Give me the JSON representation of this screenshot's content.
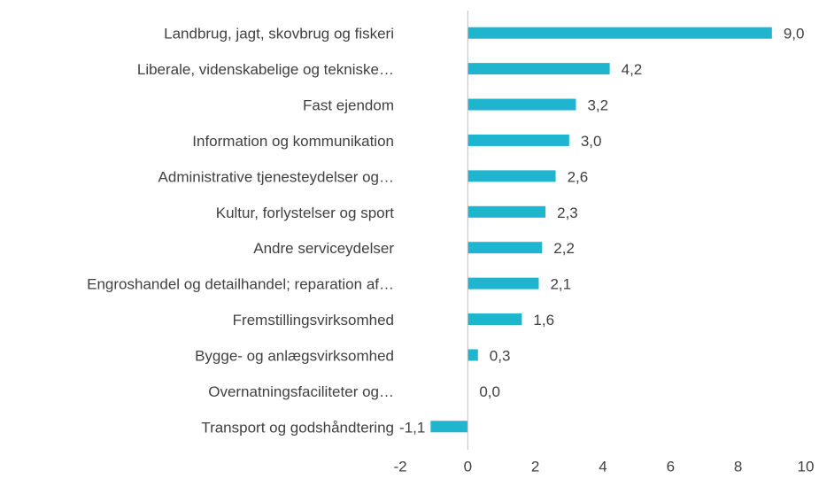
{
  "chart_data": {
    "type": "bar",
    "orientation": "horizontal",
    "categories": [
      "Landbrug, jagt, skovbrug og fiskeri",
      "Liberale, videnskabelige og tekniske…",
      "Fast ejendom",
      "Information og kommunikation",
      "Administrative tjenesteydelser og…",
      "Kultur, forlystelser og sport",
      "Andre serviceydelser",
      "Engroshandel og detailhandel; reparation af…",
      "Fremstillingsvirksomhed",
      "Bygge- og anlægsvirksomhed",
      "Overnatningsfaciliteter og…",
      "Transport og godshåndtering"
    ],
    "values": [
      9.0,
      4.2,
      3.2,
      3.0,
      2.6,
      2.3,
      2.2,
      2.1,
      1.6,
      0.3,
      0.0,
      -1.1
    ],
    "value_labels": [
      "9,0",
      "4,2",
      "3,2",
      "3,0",
      "2,6",
      "2,3",
      "2,2",
      "2,1",
      "1,6",
      "0,3",
      "0,0",
      "-1,1"
    ],
    "color": "#1fb5cf",
    "xlim": [
      -2,
      10
    ],
    "xticks": [
      -2,
      0,
      2,
      4,
      6,
      8,
      10
    ],
    "grid": false
  }
}
